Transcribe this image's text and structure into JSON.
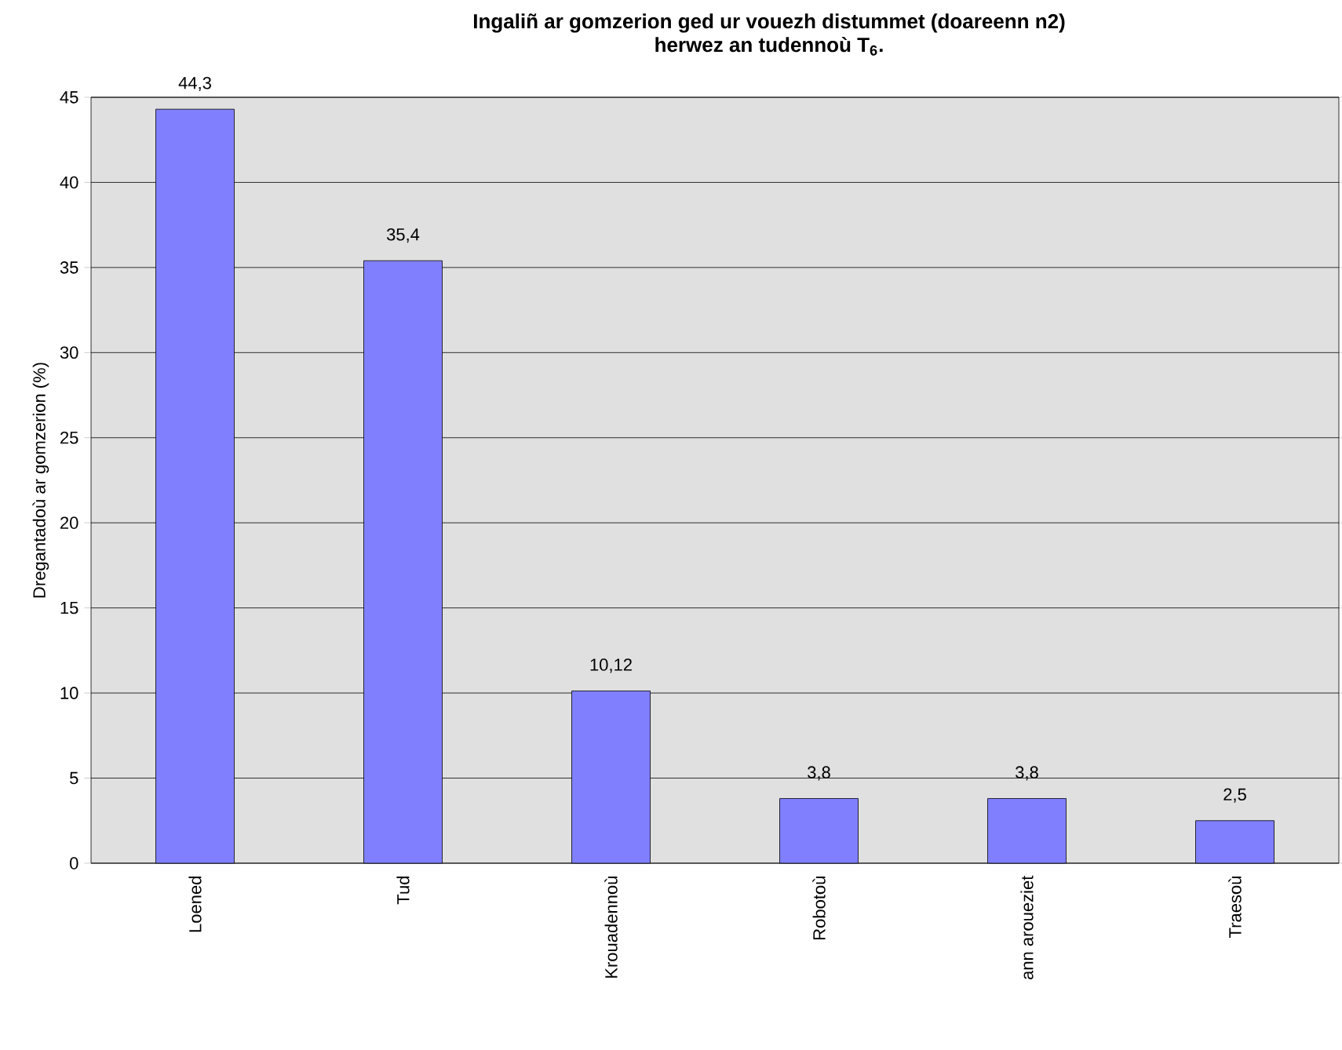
{
  "chart_data": {
    "type": "bar",
    "title": "Ingaliñ ar gomzerion ged ur vouezh distummet (doareenn n2)",
    "subtitle": "herwez an tudennoù T$_{6}$.",
    "ylabel": "Dregantadoù ar gomzerion (%)",
    "categories": [
      "Loened",
      "Tud",
      "Krouadennoù",
      "Robotoù",
      "ann aroueziet",
      "Traesoù"
    ],
    "values": [
      44.3,
      35.4,
      10.12,
      3.8,
      3.8,
      2.5
    ],
    "value_labels": [
      "44,3",
      "35,4",
      "10,12",
      "3,8",
      "3,8",
      "2,5"
    ],
    "color": "#8080ff",
    "ylim": [
      0,
      45
    ],
    "yticks": [
      0,
      5,
      10,
      15,
      20,
      25,
      30,
      35,
      40,
      45
    ],
    "grid": "y"
  }
}
